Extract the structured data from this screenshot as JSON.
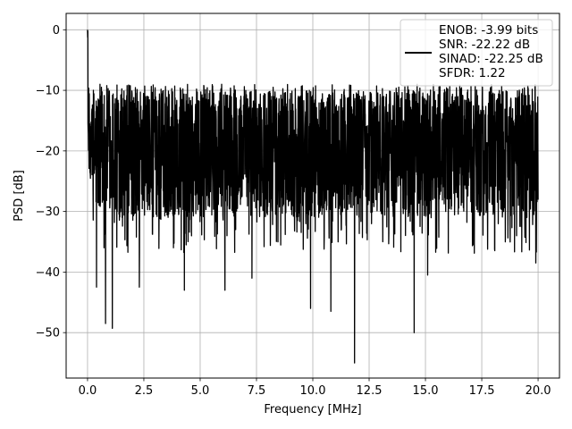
{
  "chart_data": {
    "type": "line",
    "title": "",
    "xlabel": "Frequency [MHz]",
    "ylabel": "PSD [dB]",
    "xlim": [
      -0.95,
      20.95
    ],
    "ylim": [
      -57.5,
      2.7
    ],
    "xticks": [
      0.0,
      2.5,
      5.0,
      7.5,
      10.0,
      12.5,
      15.0,
      17.5,
      20.0
    ],
    "xtick_labels": [
      "0.0",
      "2.5",
      "5.0",
      "7.5",
      "10.0",
      "12.5",
      "15.0",
      "17.5",
      "20.0"
    ],
    "yticks": [
      0,
      -10,
      -20,
      -30,
      -40,
      -50
    ],
    "ytick_labels": [
      "0",
      "−10",
      "−20",
      "−30",
      "−40",
      "−50"
    ],
    "grid": true,
    "legend_placement": "top-right",
    "series": [
      {
        "color": "#000000",
        "x_range": [
          0,
          20
        ],
        "peak": {
          "x": 0.0,
          "y": 0
        },
        "min": {
          "x": 11.85,
          "y": -55
        },
        "dips": [
          {
            "x": 0.4,
            "y": -42.5
          },
          {
            "x": 0.8,
            "y": -48.5
          },
          {
            "x": 1.1,
            "y": -49.3
          },
          {
            "x": 2.3,
            "y": -42.5
          },
          {
            "x": 4.3,
            "y": -43
          },
          {
            "x": 6.1,
            "y": -43
          },
          {
            "x": 7.3,
            "y": -41
          },
          {
            "x": 9.9,
            "y": -46
          },
          {
            "x": 10.8,
            "y": -46.5
          },
          {
            "x": 11.85,
            "y": -55
          },
          {
            "x": 14.5,
            "y": -50
          },
          {
            "x": 15.1,
            "y": -40.5
          },
          {
            "x": 19.9,
            "y": -38.5
          }
        ]
      }
    ],
    "legend": {
      "lines": [
        "ENOB: -3.99 bits",
        "SNR: -22.22 dB",
        "SINAD: -22.25 dB",
        "SFDR: 1.22"
      ],
      "line_color": "#000000"
    }
  }
}
